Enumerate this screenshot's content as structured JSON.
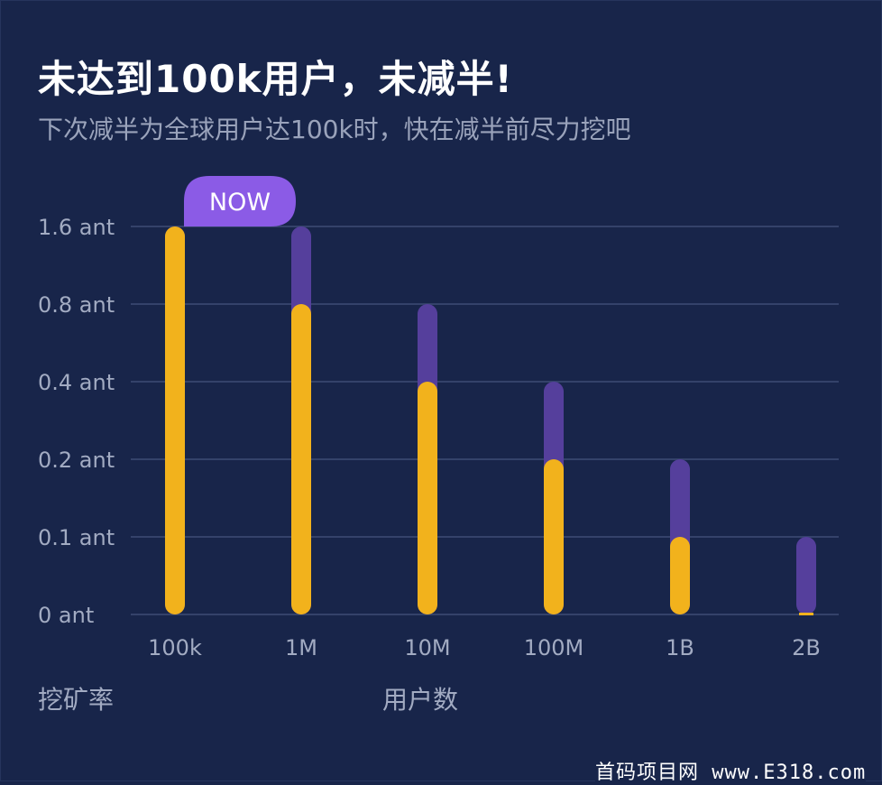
{
  "header": {
    "title": "未达到100k用户，未减半!",
    "subtitle": "下次减半为全球用户达100k时，快在减半前尽力挖吧"
  },
  "badge": {
    "label": "NOW"
  },
  "watermark": "首码项目网 www.E318.com",
  "colors": {
    "background": "#18254a",
    "grid": "#34426a",
    "current": "#f2b21c",
    "previous": "#553f9c",
    "badge": "#8b5be6"
  },
  "chart_data": {
    "type": "bar",
    "categories": [
      "100k",
      "1M",
      "10M",
      "100M",
      "1B",
      "2B"
    ],
    "y_ticks": [
      "1.6 ant",
      "0.8 ant",
      "0.4 ant",
      "0.2 ant",
      "0.1 ant",
      "0 ant"
    ],
    "series": [
      {
        "values": [
          1.6,
          1.6,
          0.8,
          0.4,
          0.2,
          0.1
        ]
      },
      {
        "values": [
          1.6,
          0.8,
          0.4,
          0.2,
          0.1,
          0
        ]
      }
    ],
    "xlabel": "用户数",
    "ylabel": "挖矿率",
    "scale": "log2",
    "grid": true,
    "current_category": "100k"
  }
}
